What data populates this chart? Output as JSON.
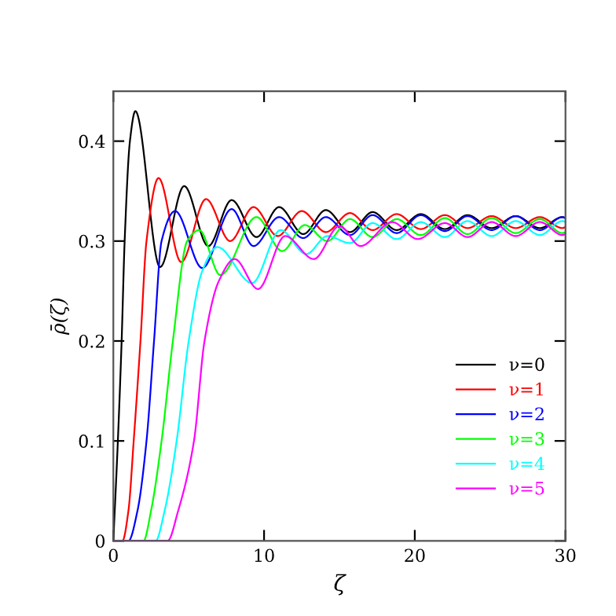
{
  "chart_data": {
    "type": "line",
    "xlabel": "ζ",
    "ylabel": "ρ̄(ζ)",
    "xlim": [
      0,
      30
    ],
    "ylim": [
      0,
      0.45
    ],
    "xticks": [
      0,
      10,
      20,
      30
    ],
    "yticks": [
      0,
      0.1,
      0.2,
      0.3,
      0.4
    ],
    "grid": false,
    "legend": "bottom right",
    "marker": "none",
    "line_style": "solid",
    "series": [
      {
        "name": "ν=0",
        "color": "#000000",
        "x": [
          0,
          0.3,
          0.55,
          0.75,
          1.1,
          1.46,
          3.1,
          4.7,
          6.3,
          7.85,
          9.5,
          11.0,
          12.6,
          14.1,
          15.7,
          17.2,
          18.8,
          20.4,
          22.0,
          23.5,
          25.1,
          26.7,
          28.3,
          29.8,
          30
        ],
        "values": [
          0,
          0.1,
          0.2,
          0.3,
          0.4,
          0.43,
          0.274,
          0.355,
          0.295,
          0.341,
          0.304,
          0.334,
          0.307,
          0.331,
          0.309,
          0.329,
          0.311,
          0.327,
          0.312,
          0.326,
          0.313,
          0.325,
          0.313,
          0.324,
          0.323
        ]
      },
      {
        "name": "ν=1",
        "color": "#ff0000",
        "x": [
          0,
          0.6,
          1.0,
          1.35,
          1.8,
          2.2,
          3.0,
          4.5,
          6.15,
          7.75,
          9.3,
          10.9,
          12.5,
          14.1,
          15.7,
          17.2,
          18.8,
          20.4,
          22.0,
          23.5,
          25.1,
          26.7,
          28.3,
          29.8,
          30
        ],
        "values": [
          0,
          0,
          0.03,
          0.1,
          0.2,
          0.3,
          0.363,
          0.279,
          0.342,
          0.3,
          0.334,
          0.305,
          0.33,
          0.309,
          0.328,
          0.311,
          0.327,
          0.312,
          0.326,
          0.313,
          0.325,
          0.313,
          0.324,
          0.313,
          0.314
        ]
      },
      {
        "name": "ν=2",
        "color": "#0000ff",
        "x": [
          0,
          1.0,
          1.6,
          2.2,
          2.7,
          3.2,
          4.1,
          5.9,
          7.85,
          9.3,
          11.0,
          12.6,
          14.1,
          15.7,
          17.2,
          18.8,
          20.4,
          22.0,
          23.5,
          25.1,
          26.7,
          28.3,
          29.8,
          30
        ],
        "values": [
          0,
          0,
          0.03,
          0.1,
          0.2,
          0.3,
          0.33,
          0.273,
          0.332,
          0.295,
          0.324,
          0.303,
          0.324,
          0.306,
          0.326,
          0.308,
          0.326,
          0.31,
          0.325,
          0.311,
          0.325,
          0.311,
          0.324,
          0.323
        ]
      },
      {
        "name": "ν=3",
        "color": "#00ff00",
        "x": [
          0,
          2.0,
          2.5,
          3.2,
          3.95,
          4.9,
          5.7,
          7.1,
          9.5,
          11.2,
          12.7,
          14.2,
          15.7,
          17.2,
          18.8,
          20.4,
          22.0,
          23.5,
          25.1,
          26.7,
          28.3,
          29.8,
          30
        ],
        "values": [
          0,
          0,
          0.03,
          0.1,
          0.2,
          0.3,
          0.311,
          0.266,
          0.324,
          0.29,
          0.316,
          0.3,
          0.322,
          0.304,
          0.322,
          0.306,
          0.323,
          0.307,
          0.323,
          0.308,
          0.322,
          0.308,
          0.309
        ]
      },
      {
        "name": "ν=4",
        "color": "#00ffff",
        "x": [
          0,
          2.8,
          3.4,
          4.2,
          5.0,
          5.9,
          6.9,
          9.2,
          11.1,
          12.8,
          14.2,
          15.7,
          17.2,
          18.8,
          20.4,
          22.0,
          23.5,
          25.1,
          26.7,
          28.3,
          29.8,
          30
        ],
        "values": [
          0,
          0,
          0.03,
          0.1,
          0.2,
          0.27,
          0.294,
          0.258,
          0.311,
          0.287,
          0.305,
          0.298,
          0.318,
          0.302,
          0.319,
          0.304,
          0.32,
          0.305,
          0.32,
          0.306,
          0.32,
          0.319
        ]
      },
      {
        "name": "ν=5",
        "color": "#ff00ff",
        "x": [
          0,
          3.6,
          4.3,
          5.35,
          6.05,
          7.0,
          8.05,
          9.6,
          11.4,
          13.3,
          15.0,
          16.4,
          18.5,
          20.2,
          22.0,
          23.5,
          25.1,
          26.7,
          28.3,
          29.8,
          30
        ],
        "values": [
          0,
          0,
          0.03,
          0.1,
          0.2,
          0.26,
          0.282,
          0.252,
          0.305,
          0.282,
          0.315,
          0.295,
          0.319,
          0.302,
          0.318,
          0.304,
          0.319,
          0.305,
          0.319,
          0.306,
          0.307
        ]
      }
    ]
  }
}
